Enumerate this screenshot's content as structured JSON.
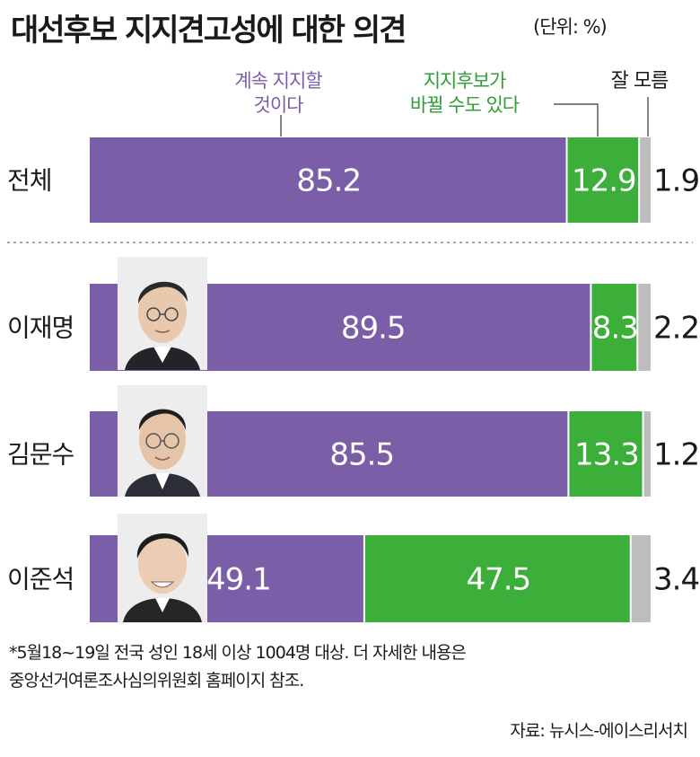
{
  "title": "대선후보 지지견고성에 대한 의견",
  "unit_note": "(단위: %)",
  "colors": {
    "keep": "#7a5ea8",
    "change": "#3cae3a",
    "unknown": "#bdbdbd",
    "text": "#1a1a1a"
  },
  "legend": {
    "keep_line1": "계속 지지할",
    "keep_line2": "것이다",
    "change_line1": "지지후보가",
    "change_line2": "바뀔 수도 있다",
    "unknown": "잘 모름"
  },
  "chart_data": {
    "type": "bar",
    "stacked": true,
    "orientation": "horizontal",
    "categories": [
      "전체",
      "이재명",
      "김문수",
      "이준석"
    ],
    "series": [
      {
        "name": "계속 지지할 것이다",
        "values": [
          85.2,
          89.5,
          85.5,
          49.1
        ]
      },
      {
        "name": "지지후보가 바뀔 수도 있다",
        "values": [
          12.9,
          8.3,
          13.3,
          47.5
        ]
      },
      {
        "name": "잘 모름",
        "values": [
          1.9,
          2.2,
          1.2,
          3.4
        ]
      }
    ],
    "xlim": [
      0,
      100
    ],
    "grid": false,
    "legend_position": "top"
  },
  "footnote_line1": "*5월18~19일 전국 성인 18세 이상 1004명 대상. 더 자세한 내용은",
  "footnote_line2": "중앙선거여론조사심의위원회 홈페이지 참조.",
  "source": "자료: 뉴시스-에이스리서치"
}
